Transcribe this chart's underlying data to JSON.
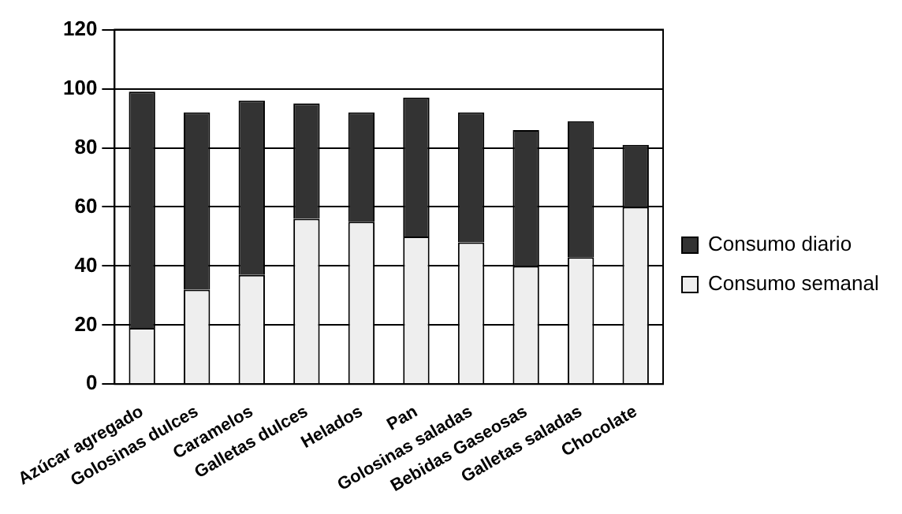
{
  "chart_data": {
    "type": "bar",
    "stacked": true,
    "categories": [
      "Azúcar agregado",
      "Golosinas dulces",
      "Caramelos",
      "Galletas dulces",
      "Helados",
      "Pan",
      "Golosinas saladas",
      "Bebidas Gaseosas",
      "Galletas saladas",
      "Chocolate"
    ],
    "series": [
      {
        "name": "Consumo semanal",
        "color": "#eeeeee",
        "values": [
          19,
          32,
          37,
          56,
          55,
          50,
          48,
          40,
          43,
          60
        ]
      },
      {
        "name": "Consumo diario",
        "color": "#333333",
        "values": [
          80,
          60,
          59,
          39,
          37,
          47,
          44,
          46,
          46,
          21
        ]
      }
    ],
    "ylim": [
      0,
      120
    ],
    "yticks": [
      0,
      20,
      40,
      60,
      80,
      100,
      120
    ],
    "grid": "y",
    "legend": "right"
  }
}
